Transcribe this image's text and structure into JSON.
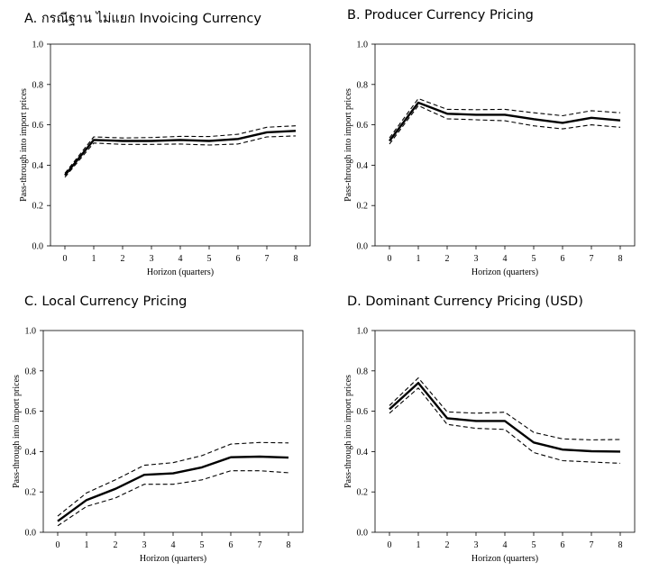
{
  "chart_data": [
    {
      "type": "line",
      "title": "A. กรณีฐาน ไม่แยก Invoicing Currency",
      "xlabel": "Horizon (quarters)",
      "ylabel": "Pass-through into import prices",
      "x": [
        0,
        1,
        2,
        3,
        4,
        5,
        6,
        7,
        8
      ],
      "xticks": [
        "0",
        "1",
        "2",
        "3",
        "4",
        "5",
        "6",
        "7",
        "8"
      ],
      "yticks": [
        "0.0",
        "0.2",
        "0.4",
        "0.6",
        "0.8",
        "1.0"
      ],
      "ylim": [
        0,
        1
      ],
      "grid": false,
      "series": [
        {
          "role": "estimate",
          "style": "solid",
          "values": [
            0.35,
            0.525,
            0.52,
            0.52,
            0.525,
            0.52,
            0.53,
            0.563,
            0.57
          ]
        },
        {
          "role": "upper",
          "style": "dashed",
          "values": [
            0.36,
            0.54,
            0.535,
            0.537,
            0.543,
            0.542,
            0.553,
            0.588,
            0.595
          ]
        },
        {
          "role": "lower",
          "style": "dashed",
          "values": [
            0.34,
            0.51,
            0.503,
            0.503,
            0.505,
            0.5,
            0.505,
            0.54,
            0.545
          ]
        }
      ]
    },
    {
      "type": "line",
      "title": "B. Producer Currency Pricing",
      "xlabel": "Horizon (quarters)",
      "ylabel": "Pass-through into import prices",
      "x": [
        0,
        1,
        2,
        3,
        4,
        5,
        6,
        7,
        8
      ],
      "xticks": [
        "0",
        "1",
        "2",
        "3",
        "4",
        "5",
        "6",
        "7",
        "8"
      ],
      "yticks": [
        "0.0",
        "0.2",
        "0.4",
        "0.6",
        "0.8",
        "1.0"
      ],
      "ylim": [
        0,
        1
      ],
      "grid": false,
      "series": [
        {
          "role": "estimate",
          "style": "solid",
          "values": [
            0.52,
            0.71,
            0.655,
            0.65,
            0.65,
            0.628,
            0.61,
            0.635,
            0.622
          ]
        },
        {
          "role": "upper",
          "style": "dashed",
          "values": [
            0.535,
            0.73,
            0.677,
            0.675,
            0.677,
            0.66,
            0.645,
            0.67,
            0.66
          ]
        },
        {
          "role": "lower",
          "style": "dashed",
          "values": [
            0.505,
            0.695,
            0.63,
            0.625,
            0.62,
            0.595,
            0.58,
            0.6,
            0.588
          ]
        }
      ]
    },
    {
      "type": "line",
      "title": "C. Local Currency Pricing",
      "xlabel": "Horizon (quarters)",
      "ylabel": "Pass-through into import prices",
      "x": [
        0,
        1,
        2,
        3,
        4,
        5,
        6,
        7,
        8
      ],
      "xticks": [
        "0",
        "1",
        "2",
        "3",
        "4",
        "5",
        "6",
        "7",
        "8"
      ],
      "yticks": [
        "0.0",
        "0.2",
        "0.4",
        "0.6",
        "0.8",
        "1.0"
      ],
      "ylim": [
        0,
        1
      ],
      "grid": false,
      "series": [
        {
          "role": "estimate",
          "style": "solid",
          "values": [
            0.055,
            0.16,
            0.215,
            0.285,
            0.292,
            0.322,
            0.372,
            0.375,
            0.37
          ]
        },
        {
          "role": "upper",
          "style": "dashed",
          "values": [
            0.08,
            0.195,
            0.26,
            0.332,
            0.345,
            0.38,
            0.437,
            0.445,
            0.443
          ]
        },
        {
          "role": "lower",
          "style": "dashed",
          "values": [
            0.032,
            0.128,
            0.17,
            0.238,
            0.238,
            0.26,
            0.305,
            0.305,
            0.295
          ]
        }
      ]
    },
    {
      "type": "line",
      "title": "D. Dominant Currency Pricing (USD)",
      "xlabel": "Horizon (quarters)",
      "ylabel": "Pass-through into import prices",
      "x": [
        0,
        1,
        2,
        3,
        4,
        5,
        6,
        7,
        8
      ],
      "xticks": [
        "0",
        "1",
        "2",
        "3",
        "4",
        "5",
        "6",
        "7",
        "8"
      ],
      "yticks": [
        "0.0",
        "0.2",
        "0.4",
        "0.6",
        "0.8",
        "1.0"
      ],
      "ylim": [
        0,
        1
      ],
      "grid": false,
      "series": [
        {
          "role": "estimate",
          "style": "solid",
          "values": [
            0.61,
            0.74,
            0.565,
            0.552,
            0.552,
            0.445,
            0.41,
            0.402,
            0.4
          ]
        },
        {
          "role": "upper",
          "style": "dashed",
          "values": [
            0.628,
            0.765,
            0.597,
            0.59,
            0.595,
            0.495,
            0.463,
            0.458,
            0.46
          ]
        },
        {
          "role": "lower",
          "style": "dashed",
          "values": [
            0.59,
            0.715,
            0.535,
            0.515,
            0.51,
            0.395,
            0.355,
            0.348,
            0.342
          ]
        }
      ]
    }
  ]
}
